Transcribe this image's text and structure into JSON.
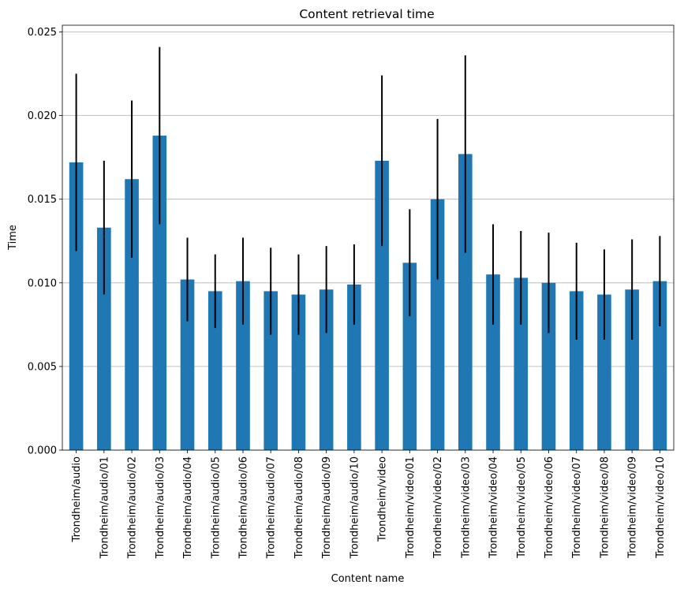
{
  "chart_data": {
    "type": "bar",
    "title": "Content retrieval time",
    "xlabel": "Content name",
    "ylabel": "Time",
    "ylim": [
      0,
      0.0254
    ],
    "yticks": [
      "0.000",
      "0.005",
      "0.010",
      "0.015",
      "0.020",
      "0.025"
    ],
    "grid": "y-axis major",
    "bar_color": "#1f77b4",
    "error_color": "#000000",
    "categories": [
      "Trondheim/audio",
      "Trondheim/audio/01",
      "Trondheim/audio/02",
      "Trondheim/audio/03",
      "Trondheim/audio/04",
      "Trondheim/audio/05",
      "Trondheim/audio/06",
      "Trondheim/audio/07",
      "Trondheim/audio/08",
      "Trondheim/audio/09",
      "Trondheim/audio/10",
      "Trondheim/video",
      "Trondheim/video/01",
      "Trondheim/video/02",
      "Trondheim/video/03",
      "Trondheim/video/04",
      "Trondheim/video/05",
      "Trondheim/video/06",
      "Trondheim/video/07",
      "Trondheim/video/08",
      "Trondheim/video/09",
      "Trondheim/video/10"
    ],
    "values": [
      0.0172,
      0.0133,
      0.0162,
      0.0188,
      0.0102,
      0.0095,
      0.0101,
      0.0095,
      0.0093,
      0.0096,
      0.0099,
      0.0173,
      0.0112,
      0.015,
      0.0177,
      0.0105,
      0.0103,
      0.01,
      0.0095,
      0.0093,
      0.0096,
      0.0101
    ],
    "errors": [
      0.0053,
      0.004,
      0.0047,
      0.0053,
      0.0025,
      0.0022,
      0.0026,
      0.0026,
      0.0024,
      0.0026,
      0.0024,
      0.0051,
      0.0032,
      0.0048,
      0.0059,
      0.003,
      0.0028,
      0.003,
      0.0029,
      0.0027,
      0.003,
      0.0027
    ]
  }
}
